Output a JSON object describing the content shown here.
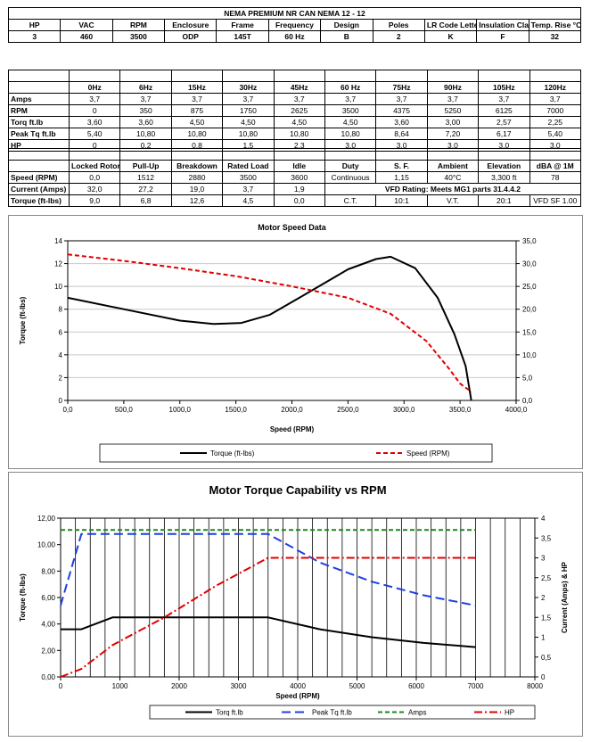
{
  "spec": {
    "title": "NEMA PREMIUM NR CAN NEMA 12 - 12",
    "headers": [
      "HP",
      "VAC",
      "RPM",
      "Enclosure",
      "Frame",
      "Frequency",
      "Design",
      "Poles",
      "LR Code Letter",
      "Insulation Class",
      "Temp. Rise °C"
    ],
    "values": [
      "3",
      "460",
      "3500",
      "ODP",
      "145T",
      "60 Hz",
      "B",
      "2",
      "K",
      "F",
      "32"
    ]
  },
  "vfd_table": {
    "headers": [
      "0Hz",
      "6Hz",
      "15Hz",
      "30Hz",
      "45Hz",
      "60 Hz",
      "75Hz",
      "90Hz",
      "105Hz",
      "120Hz"
    ],
    "rows": [
      {
        "label": "Amps",
        "values": [
          "3,7",
          "3,7",
          "3,7",
          "3,7",
          "3,7",
          "3,7",
          "3,7",
          "3,7",
          "3,7",
          "3,7"
        ]
      },
      {
        "label": "RPM",
        "values": [
          "0",
          "350",
          "875",
          "1750",
          "2625",
          "3500",
          "4375",
          "5250",
          "6125",
          "7000"
        ]
      },
      {
        "label": "Torq ft.lb",
        "values": [
          "3,60",
          "3,60",
          "4,50",
          "4,50",
          "4,50",
          "4,50",
          "3,60",
          "3,00",
          "2,57",
          "2,25"
        ]
      },
      {
        "label": "Peak Tq ft.lb",
        "values": [
          "5,40",
          "10,80",
          "10,80",
          "10,80",
          "10,80",
          "10,80",
          "8,64",
          "7,20",
          "6,17",
          "5,40"
        ]
      },
      {
        "label": "HP",
        "values": [
          "0",
          "0,2",
          "0,8",
          "1,5",
          "2,3",
          "3,0",
          "3,0",
          "3,0",
          "3,0",
          "3,0"
        ]
      }
    ]
  },
  "perf_table": {
    "headers": [
      "Locked Rotor",
      "Pull-Up",
      "Breakdown",
      "Rated Load",
      "Idle"
    ],
    "rows": [
      {
        "label": "Speed (RPM)",
        "values": [
          "0,0",
          "1512",
          "2880",
          "3500",
          "3600"
        ]
      },
      {
        "label": "Current (Amps)",
        "values": [
          "32,0",
          "27,2",
          "19,0",
          "3,7",
          "1,9"
        ]
      },
      {
        "label": "Torque (ft-lbs)",
        "values": [
          "9,0",
          "6,8",
          "12,6",
          "4,5",
          "0,0"
        ]
      }
    ],
    "right_headers": [
      "Duty",
      "S. F.",
      "Ambient",
      "Elevation",
      "dBA @ 1M"
    ],
    "right_values": [
      "Continuous",
      "1,15",
      "40°C",
      "3,300 ft",
      "78"
    ],
    "vfd_rating": "VFD Rating: Meets MG1 parts 31.4.4.2",
    "last_row": [
      "C.T.",
      "10:1",
      "V.T.",
      "20:1",
      "VFD SF 1.00"
    ]
  },
  "chart_data": [
    {
      "type": "line",
      "title": "Motor Speed Data",
      "xlabel": "Speed (RPM)",
      "ylabel": "Torque (ft-lbs)",
      "y2label": "",
      "xlim": [
        0,
        4000
      ],
      "ylim": [
        0,
        14
      ],
      "y2lim": [
        0,
        35
      ],
      "x_ticks": [
        "0,0",
        "500,0",
        "1000,0",
        "1500,0",
        "2000,0",
        "2500,0",
        "3000,0",
        "3500,0",
        "4000,0"
      ],
      "y_ticks": [
        "0",
        "2",
        "4",
        "6",
        "8",
        "10",
        "12",
        "14"
      ],
      "y2_ticks": [
        "0,0",
        "5,0",
        "10,0",
        "15,0",
        "20,0",
        "25,0",
        "30,0",
        "35,0"
      ],
      "grid": "horizontal",
      "legend": "bottom",
      "series": [
        {
          "name": "Torque (ft-lbs)",
          "color": "#000000",
          "dash": "solid",
          "axis": "left",
          "x": [
            0,
            500,
            1000,
            1300,
            1550,
            1800,
            2100,
            2500,
            2750,
            2880,
            3100,
            3300,
            3450,
            3550,
            3600
          ],
          "y": [
            9.0,
            8.0,
            7.0,
            6.7,
            6.8,
            7.5,
            9.2,
            11.5,
            12.4,
            12.6,
            11.6,
            9.0,
            5.8,
            3.0,
            0.0
          ]
        },
        {
          "name": "Speed (RPM)",
          "color": "#e00000",
          "dash": "dashed",
          "axis": "right",
          "x": [
            0,
            500,
            1000,
            1512,
            2000,
            2500,
            2880,
            3200,
            3400,
            3500,
            3600
          ],
          "y": [
            32.0,
            30.6,
            29.0,
            27.2,
            25.0,
            22.5,
            19.0,
            13.0,
            7.0,
            3.7,
            1.9
          ]
        }
      ]
    },
    {
      "type": "line",
      "title": "Motor Torque Capability vs RPM",
      "xlabel": "Speed (RPM)",
      "ylabel": "Torque (ft-lbs)",
      "y2label": "Current (Amps) & HP",
      "xlim": [
        0,
        8000
      ],
      "ylim": [
        0,
        12
      ],
      "y2lim": [
        0,
        4
      ],
      "x_ticks": [
        "0",
        "1000",
        "2000",
        "3000",
        "4000",
        "5000",
        "6000",
        "7000",
        "8000"
      ],
      "y_ticks": [
        "0,00",
        "2,00",
        "4,00",
        "6,00",
        "8,00",
        "10,00",
        "12,00"
      ],
      "y2_ticks": [
        "0",
        "0,5",
        "1",
        "1,5",
        "2",
        "2,5",
        "3",
        "3,5",
        "4"
      ],
      "grid": "vertical",
      "legend": "bottom",
      "series": [
        {
          "name": "Torq ft.lb",
          "color": "#000000",
          "dash": "solid",
          "axis": "left",
          "x": [
            0,
            350,
            875,
            1750,
            2625,
            3500,
            4375,
            5250,
            6125,
            7000
          ],
          "y": [
            3.6,
            3.6,
            4.5,
            4.5,
            4.5,
            4.5,
            3.6,
            3.0,
            2.57,
            2.25
          ]
        },
        {
          "name": "Peak Tq ft.lb",
          "color": "#1f3fe0",
          "dash": "longdash",
          "axis": "left",
          "x": [
            0,
            350,
            875,
            1750,
            2625,
            3500,
            4375,
            5250,
            6125,
            7000
          ],
          "y": [
            5.4,
            10.8,
            10.8,
            10.8,
            10.8,
            10.8,
            8.64,
            7.2,
            6.17,
            5.4
          ]
        },
        {
          "name": "Amps",
          "color": "#1a8a1a",
          "dash": "dashed",
          "axis": "right",
          "x": [
            0,
            7000
          ],
          "y": [
            3.7,
            3.7
          ]
        },
        {
          "name": "HP",
          "color": "#e00000",
          "dash": "dashdot",
          "axis": "right",
          "x": [
            0,
            350,
            875,
            1750,
            2625,
            3500,
            4375,
            5250,
            6125,
            7000
          ],
          "y": [
            0,
            0.2,
            0.8,
            1.5,
            2.3,
            3.0,
            3.0,
            3.0,
            3.0,
            3.0
          ]
        }
      ]
    }
  ]
}
